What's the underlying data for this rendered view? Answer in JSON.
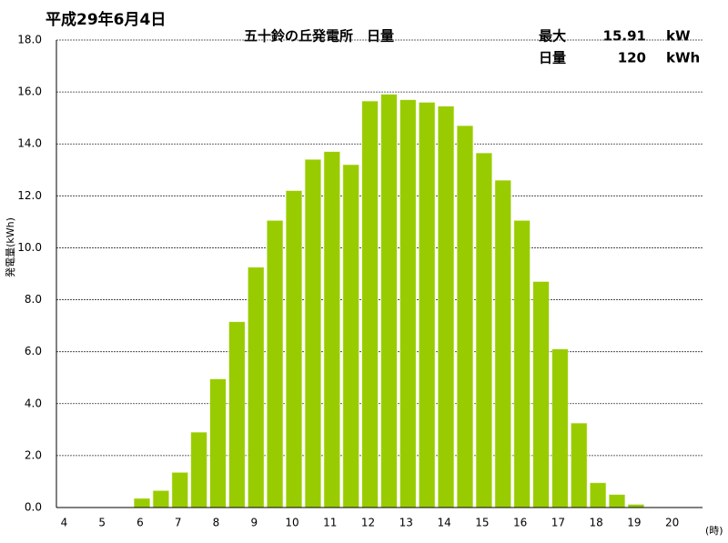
{
  "chart_data": {
    "type": "bar",
    "title": "平成29年6月4日",
    "subtitle": "五十鈴の丘発電所　日量",
    "max": {
      "label": "最大",
      "value": 15.91,
      "unit": "kW"
    },
    "total": {
      "label": "日量",
      "value": 120,
      "unit": "kWh"
    },
    "y_label": "発電量(kWh)",
    "x_unit": "(時)",
    "categories": [
      "4",
      null,
      "5",
      null,
      "6",
      null,
      "7",
      null,
      "8",
      null,
      "9",
      null,
      "10",
      null,
      "11",
      null,
      "12",
      null,
      "13",
      null,
      "14",
      null,
      "15",
      null,
      "16",
      null,
      "17",
      null,
      "18",
      null,
      "19",
      null,
      "20",
      null
    ],
    "values": [
      0,
      0,
      0,
      0,
      0.35,
      0.65,
      1.35,
      2.9,
      4.95,
      7.15,
      9.25,
      11.05,
      12.2,
      13.4,
      13.7,
      13.2,
      15.65,
      15.91,
      15.7,
      15.6,
      15.45,
      14.7,
      13.65,
      12.6,
      11.05,
      8.7,
      6.1,
      3.25,
      0.95,
      0.5,
      0.12,
      0,
      0,
      0
    ],
    "color": "#99cc00",
    "ylim": [
      0,
      18
    ],
    "yticks": [
      {
        "value": 0,
        "label": "0.0"
      },
      {
        "value": 2,
        "label": "2.0"
      },
      {
        "value": 4,
        "label": "4.0"
      },
      {
        "value": 6,
        "label": "6.0"
      },
      {
        "value": 8,
        "label": "8.0"
      },
      {
        "value": 10,
        "label": "10.0"
      },
      {
        "value": 12,
        "label": "12.0"
      },
      {
        "value": 14,
        "label": "14.0"
      },
      {
        "value": 16,
        "label": "16.0"
      },
      {
        "value": 18,
        "label": "18.0"
      }
    ],
    "grid": true
  }
}
